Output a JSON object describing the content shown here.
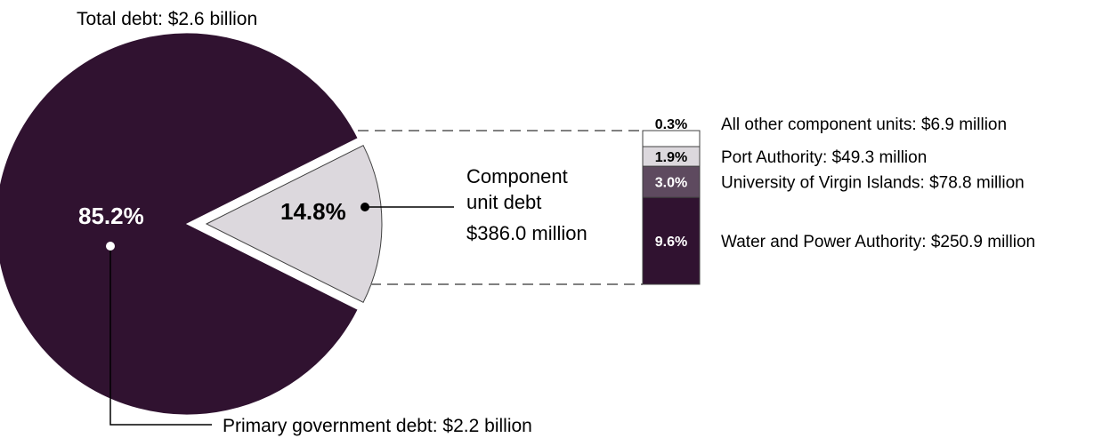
{
  "chart_data": {
    "type": "pie",
    "title": "Total debt: $2.6 billion",
    "slices": [
      {
        "label": "Primary government debt: $2.2 billion",
        "value": 85.2,
        "value_label": "85.2%",
        "color": "#301230"
      },
      {
        "label_line1": "Component",
        "label_line2": "unit debt",
        "label_line3": "$386.0 million",
        "value": 14.8,
        "value_label": "14.8%",
        "color": "#dcd8dd",
        "exploded": true
      }
    ],
    "breakdown": {
      "type": "stacked_bar",
      "segments": [
        {
          "label": "All other component units: $6.9 million",
          "value": 0.3,
          "value_label": "0.3%",
          "color": "#ffffff"
        },
        {
          "label": "Port Authority: $49.3 million",
          "value": 1.9,
          "value_label": "1.9%",
          "color": "#dcd8dd"
        },
        {
          "label": "University of Virgin Islands: $78.8 million",
          "value": 3.0,
          "value_label": "3.0%",
          "color": "#5e4a5f"
        },
        {
          "label": "Water and Power Authority: $250.9 million",
          "value": 9.6,
          "value_label": "9.6%",
          "color": "#301230"
        }
      ]
    },
    "colors": {
      "primary": "#301230",
      "component": "#dcd8dd",
      "connector": "#808080"
    }
  }
}
